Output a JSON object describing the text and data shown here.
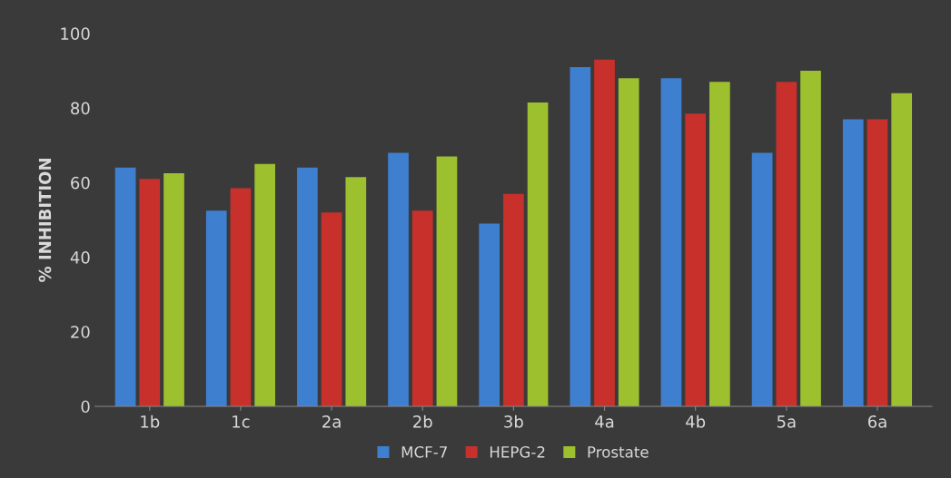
{
  "chart_data": {
    "type": "bar",
    "ylabel": "% INHIBITION",
    "categories": [
      "1b",
      "1c",
      "2a",
      "2b",
      "3b",
      "4a",
      "4b",
      "5a",
      "6a"
    ],
    "series": [
      {
        "name": "MCF-7",
        "color": "#3f7fd0",
        "values": [
          64,
          52.5,
          64,
          68,
          49,
          91,
          88,
          68,
          77
        ]
      },
      {
        "name": "HEPG-2",
        "color": "#c8302c",
        "values": [
          61,
          58.5,
          52,
          52.5,
          57,
          93,
          78.5,
          87,
          77
        ]
      },
      {
        "name": "Prostate",
        "color": "#9dc02f",
        "values": [
          62.5,
          65,
          61.5,
          67,
          81.5,
          88,
          87,
          90,
          84
        ]
      }
    ],
    "ylim": [
      0,
      100
    ],
    "yticks": [
      0,
      20,
      40,
      60,
      80,
      100
    ],
    "grid": false,
    "legend": "bottom"
  }
}
